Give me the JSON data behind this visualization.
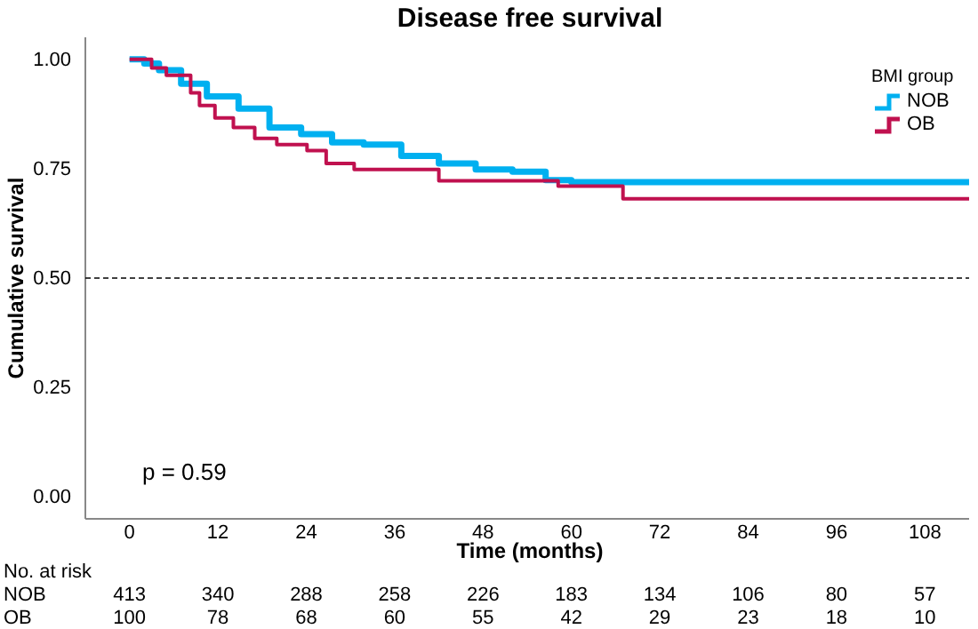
{
  "chart_data": [
    {
      "type": "step",
      "title": "Disease free survival",
      "xlabel": "Time (months)",
      "ylabel": "Cumulative survival",
      "legend_title": "BMI group",
      "legend": "top right",
      "xlim": [
        -6,
        114
      ],
      "ylim": [
        -0.05,
        1.05
      ],
      "xticks": [
        0,
        12,
        24,
        36,
        48,
        60,
        72,
        84,
        96,
        108
      ],
      "yticks": [
        {
          "value": 0,
          "label": "0.00"
        },
        {
          "value": 0.25,
          "label": "0.25"
        },
        {
          "value": 0.5,
          "label": "0.50"
        },
        {
          "value": 0.75,
          "label": "0.75"
        },
        {
          "value": 1,
          "label": "1.00"
        }
      ],
      "ref_lines": [
        {
          "axis": "y",
          "value": 0.5,
          "color": "#000000",
          "line_style": "dashed"
        }
      ],
      "annotations": [
        "p = 0.59"
      ],
      "series": [
        {
          "name": "NOB",
          "color": "#00b0f0",
          "x": [
            0,
            2,
            4,
            7,
            10.5,
            14.8,
            19,
            23.3,
            27.5,
            31.8,
            36.9,
            42,
            47,
            52,
            56.5,
            60,
            114
          ],
          "values": [
            1,
            0.99,
            0.975,
            0.944,
            0.915,
            0.887,
            0.844,
            0.829,
            0.81,
            0.805,
            0.779,
            0.762,
            0.748,
            0.743,
            0.724,
            0.719,
            0.719
          ]
        },
        {
          "name": "OB",
          "color": "#c0114f",
          "x": [
            0,
            3,
            5,
            8.3,
            9.5,
            11.6,
            14.1,
            17,
            20,
            24.1,
            26.7,
            30.5,
            42,
            58.2,
            67,
            114
          ],
          "values": [
            1,
            0.98,
            0.963,
            0.923,
            0.894,
            0.866,
            0.844,
            0.819,
            0.805,
            0.791,
            0.762,
            0.748,
            0.722,
            0.71,
            0.681,
            0.681
          ]
        }
      ]
    },
    {
      "type": "other",
      "title": "No. at risk",
      "annotations": [
        "NOB",
        "413",
        "340",
        "288",
        "258",
        "226",
        "183",
        "134",
        "106",
        "80",
        "57",
        "OB",
        "100",
        "78",
        "68",
        "60",
        "55",
        "42",
        "29",
        "23",
        "18",
        "10"
      ]
    }
  ]
}
